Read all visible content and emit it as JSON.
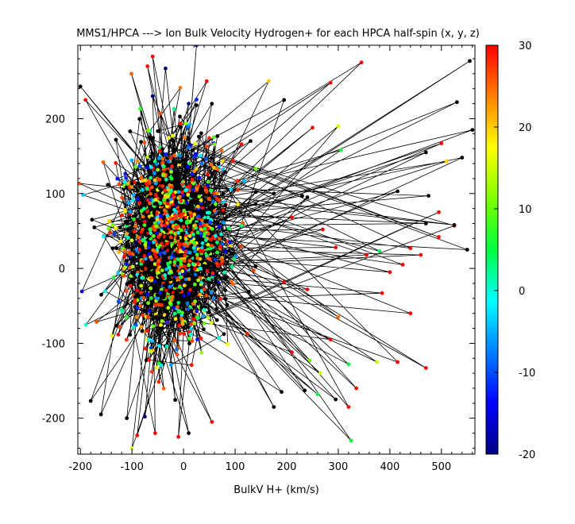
{
  "chart_data": {
    "type": "scatter",
    "title": "MMS1/HPCA  ---> Ion Bulk Velocity Hydrogen+ for each HPCA half-spin (x, y, z)",
    "xlabel": "BulkV H+ (km/s)",
    "ylabel": "",
    "xlim": [
      -205,
      565
    ],
    "ylim": [
      -248,
      298
    ],
    "xticks": [
      -200,
      -100,
      0,
      100,
      200,
      300,
      400,
      500
    ],
    "yticks": [
      -200,
      -100,
      0,
      100,
      200
    ],
    "xtick_labels": [
      "-200",
      "-100",
      "0",
      "100",
      "200",
      "300",
      "400",
      "500"
    ],
    "ytick_labels": [
      "-200",
      "-100",
      "0",
      "100",
      "200"
    ],
    "grid": false,
    "points_connected": true,
    "colorbar": {
      "min": -20,
      "max": 30,
      "ticks": [
        -20,
        -10,
        0,
        10,
        20,
        30
      ],
      "tick_labels": [
        "-20",
        "-10",
        "0",
        "10",
        "20",
        "30"
      ],
      "colormap": [
        "#00007f",
        "#0000ff",
        "#0080ff",
        "#00ffff",
        "#00ff40",
        "#80ff00",
        "#ffff00",
        "#ff8000",
        "#ff0000"
      ]
    },
    "cluster": {
      "x_center": -20,
      "y_center": 40,
      "x_spread": 75,
      "y_spread": 85,
      "count": 1400
    },
    "outliers": [
      {
        "x": 555,
        "y": 277,
        "c": -30
      },
      {
        "x": 530,
        "y": 222,
        "c": -30
      },
      {
        "x": 500,
        "y": 167,
        "c": 30
      },
      {
        "x": 510,
        "y": 143,
        "c": 20
      },
      {
        "x": 345,
        "y": 275,
        "c": 30
      },
      {
        "x": 285,
        "y": 248,
        "c": 30
      },
      {
        "x": 165,
        "y": 250,
        "c": 20
      },
      {
        "x": 300,
        "y": 190,
        "c": 15
      },
      {
        "x": 305,
        "y": 158,
        "c": 5
      },
      {
        "x": 415,
        "y": 103,
        "c": -30
      },
      {
        "x": 495,
        "y": 75,
        "c": 30
      },
      {
        "x": 525,
        "y": 57,
        "c": 30
      },
      {
        "x": 495,
        "y": 42,
        "c": 30
      },
      {
        "x": 380,
        "y": 23,
        "c": 5
      },
      {
        "x": 460,
        "y": 18,
        "c": 30
      },
      {
        "x": 425,
        "y": 5,
        "c": 30
      },
      {
        "x": 400,
        "y": -5,
        "c": 30
      },
      {
        "x": 355,
        "y": 18,
        "c": 30
      },
      {
        "x": 270,
        "y": 52,
        "c": 30
      },
      {
        "x": 295,
        "y": 28,
        "c": 30
      },
      {
        "x": 385,
        "y": -33,
        "c": 30
      },
      {
        "x": 300,
        "y": -65,
        "c": 25
      },
      {
        "x": 440,
        "y": -60,
        "c": 30
      },
      {
        "x": 470,
        "y": -133,
        "c": 30
      },
      {
        "x": 415,
        "y": -125,
        "c": 30
      },
      {
        "x": 375,
        "y": -125,
        "c": 15
      },
      {
        "x": 335,
        "y": -160,
        "c": 30
      },
      {
        "x": 320,
        "y": -128,
        "c": 5
      },
      {
        "x": 320,
        "y": -185,
        "c": 30
      },
      {
        "x": 325,
        "y": -230,
        "c": 5
      },
      {
        "x": 295,
        "y": -175,
        "c": -30
      },
      {
        "x": 235,
        "y": -163,
        "c": -30
      },
      {
        "x": 190,
        "y": -165,
        "c": -30
      },
      {
        "x": 175,
        "y": -185,
        "c": -30
      },
      {
        "x": 260,
        "y": -168,
        "c": 5
      },
      {
        "x": 245,
        "y": -123,
        "c": 10
      },
      {
        "x": 265,
        "y": -140,
        "c": 15
      },
      {
        "x": 210,
        "y": -112,
        "c": 30
      },
      {
        "x": 285,
        "y": -95,
        "c": 30
      },
      {
        "x": 195,
        "y": 225,
        "c": -30
      },
      {
        "x": 230,
        "y": 97,
        "c": -30
      },
      {
        "x": 175,
        "y": 100,
        "c": -30
      },
      {
        "x": 240,
        "y": 95,
        "c": -30
      },
      {
        "x": 470,
        "y": 155,
        "c": -30
      },
      {
        "x": 475,
        "y": 97,
        "c": -30
      },
      {
        "x": 470,
        "y": 60,
        "c": -30
      },
      {
        "x": 440,
        "y": 27,
        "c": 30
      },
      {
        "x": 560,
        "y": 185,
        "c": -30
      },
      {
        "x": 540,
        "y": 148,
        "c": -30
      },
      {
        "x": 525,
        "y": 58,
        "c": -30
      },
      {
        "x": 550,
        "y": 25,
        "c": -30
      },
      {
        "x": 250,
        "y": 188,
        "c": 30
      },
      {
        "x": 210,
        "y": 68,
        "c": 30
      },
      {
        "x": 195,
        "y": -18,
        "c": 30
      },
      {
        "x": 240,
        "y": -28,
        "c": 30
      },
      {
        "x": 140,
        "y": 102,
        "c": -30
      },
      {
        "x": 130,
        "y": 170,
        "c": -30
      },
      {
        "x": -160,
        "y": -195,
        "c": -30
      },
      {
        "x": -75,
        "y": -198,
        "c": -20
      },
      {
        "x": -90,
        "y": -223,
        "c": 30
      },
      {
        "x": -55,
        "y": -220,
        "c": 30
      },
      {
        "x": -10,
        "y": -225,
        "c": 30
      },
      {
        "x": 10,
        "y": -220,
        "c": -30
      },
      {
        "x": 55,
        "y": -205,
        "c": 30
      },
      {
        "x": -110,
        "y": -200,
        "c": -30
      },
      {
        "x": -180,
        "y": -177,
        "c": -30
      },
      {
        "x": -100,
        "y": -240,
        "c": 15
      },
      {
        "x": -70,
        "y": 270,
        "c": 30
      },
      {
        "x": -60,
        "y": 283,
        "c": 30
      },
      {
        "x": -35,
        "y": 267,
        "c": -20
      },
      {
        "x": 25,
        "y": 298,
        "c": -20
      },
      {
        "x": 45,
        "y": 250,
        "c": 30
      },
      {
        "x": -60,
        "y": 230,
        "c": -20
      },
      {
        "x": -200,
        "y": 243,
        "c": -30
      },
      {
        "x": -190,
        "y": 225,
        "c": 30
      },
      {
        "x": 10,
        "y": 220,
        "c": -20
      },
      {
        "x": 25,
        "y": 218,
        "c": -30
      },
      {
        "x": 55,
        "y": 220,
        "c": -30
      }
    ]
  }
}
